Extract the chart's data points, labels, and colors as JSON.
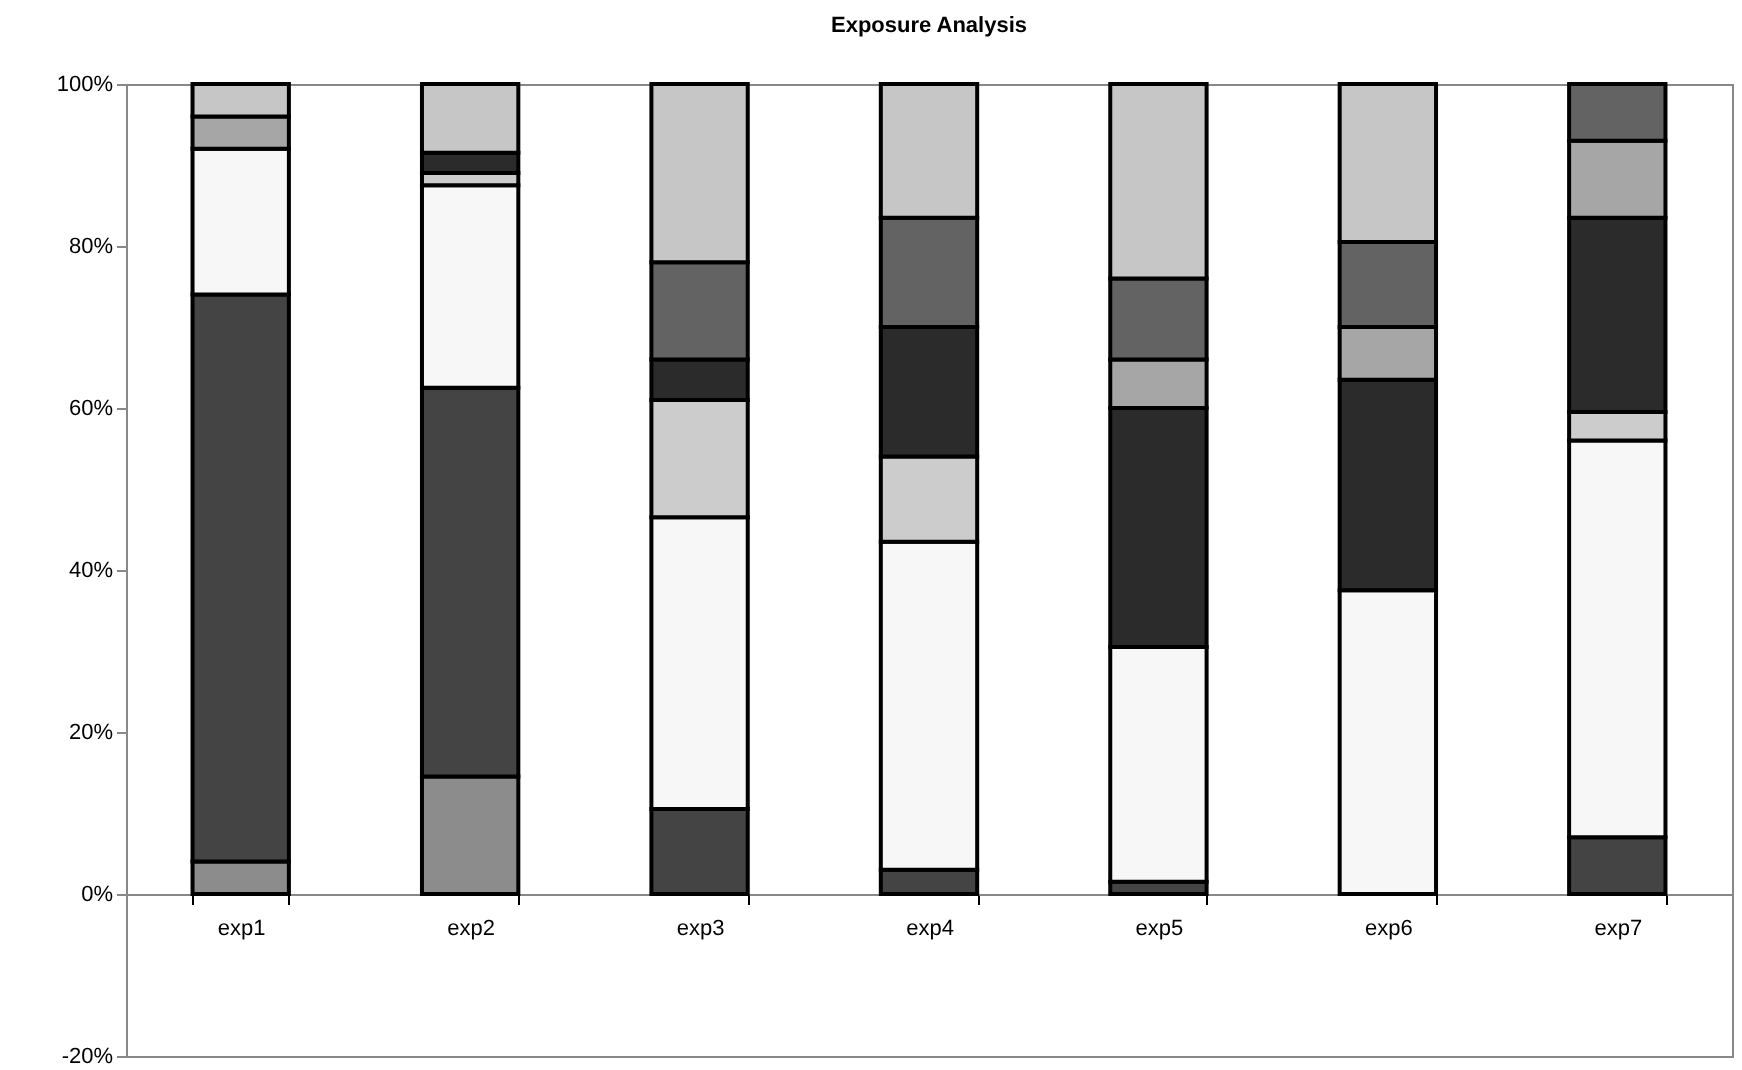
{
  "chart_data": {
    "type": "bar",
    "title": "Exposure Analysis",
    "stacked": true,
    "categories": [
      "exp1",
      "exp2",
      "exp3",
      "exp4",
      "exp5",
      "exp6",
      "exp7"
    ],
    "series": [
      {
        "color": "#8c8c8c",
        "values": [
          4,
          14.5,
          null,
          null,
          null,
          null,
          null
        ]
      },
      {
        "color": "#444444",
        "values": [
          70,
          48,
          10.5,
          3,
          1.5,
          null,
          7
        ]
      },
      {
        "color": "#f7f7f7",
        "values": [
          18,
          25,
          36,
          40.5,
          29,
          37.5,
          49
        ]
      },
      {
        "color": "#cccccc",
        "values": [
          null,
          1.5,
          14.5,
          10.5,
          null,
          null,
          3.5
        ]
      },
      {
        "color": "#2b2b2b",
        "values": [
          null,
          2.5,
          5,
          16,
          29.5,
          26,
          24
        ]
      },
      {
        "color": "#a6a6a6",
        "values": [
          4,
          null,
          null,
          null,
          6,
          6.5,
          9.5
        ]
      },
      {
        "color": "#636363",
        "values": [
          null,
          null,
          12,
          13.5,
          10,
          10.5,
          7
        ]
      },
      {
        "color": "#c6c6c6",
        "values": [
          4,
          8.5,
          22,
          16.5,
          24,
          19.5,
          null
        ]
      }
    ],
    "ylim": [
      -20,
      100
    ],
    "yticks": [
      {
        "value": -20,
        "label": "-20%"
      },
      {
        "value": 0,
        "label": "0%"
      },
      {
        "value": 20,
        "label": "20%"
      },
      {
        "value": 40,
        "label": "40%"
      },
      {
        "value": 60,
        "label": "60%"
      },
      {
        "value": 80,
        "label": "80%"
      },
      {
        "value": 100,
        "label": "100%"
      }
    ],
    "grid": false
  }
}
